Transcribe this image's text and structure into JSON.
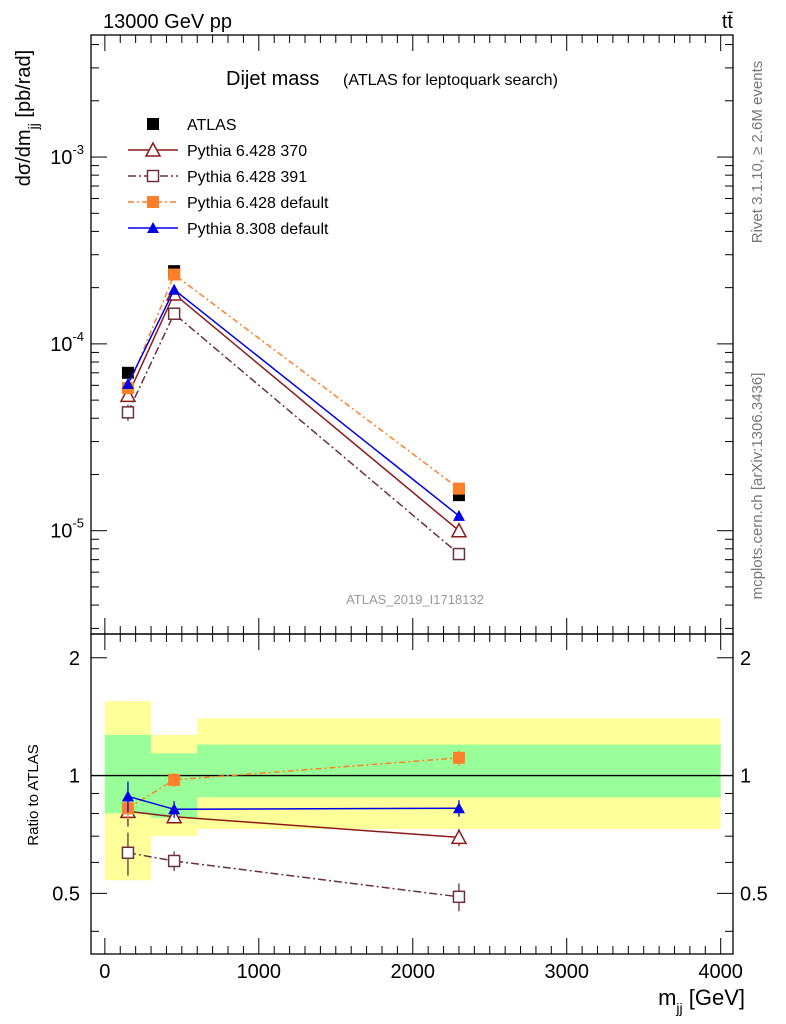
{
  "header": {
    "energy_label": "13000 GeV pp",
    "process_label": "tt̄"
  },
  "side": {
    "rivet_label": "Rivet 3.1.10, ≥ 2.6M events",
    "site_label": "mcplots.cern.ch [arXiv:1306.3436]"
  },
  "chart_data": [
    {
      "type": "line",
      "title": "Dijet mass",
      "subtitle": "(ATLAS for leptoquark search)",
      "analysis_id": "ATLAS_2019_I1718132",
      "ylabel": "dσ/dm_jj [pb/rad]",
      "yscale": "log",
      "ylim": [
        2.8e-06,
        0.0045
      ],
      "yticks": [
        "10^-5",
        "10^-4",
        "10^-3"
      ],
      "x": [
        150,
        450,
        2300
      ],
      "legend_position": "top-left",
      "series": [
        {
          "name": "ATLAS",
          "values": [
            7e-05,
            0.000245,
            1.55e-05
          ],
          "color": "#000000",
          "marker": "filled-square"
        },
        {
          "name": "Pythia 6.428 370",
          "values": [
            5.3e-05,
            0.000185,
            1e-05
          ],
          "color": "#8b1a1a",
          "marker": "open-triangle",
          "errors": [
            0.05,
            0.03,
            0.05
          ]
        },
        {
          "name": "Pythia 6.428 391",
          "values": [
            4.3e-05,
            0.000145,
            7.5e-06
          ],
          "color": "#6b3040",
          "marker": "open-square",
          "errors": [
            0.1,
            0.03,
            0.05
          ]
        },
        {
          "name": "Pythia 6.428 default",
          "values": [
            5.8e-05,
            0.000235,
            1.68e-05
          ],
          "color": "#ff7f2a",
          "marker": "filled-square",
          "errors": [
            0.05,
            0.03,
            0.04
          ]
        },
        {
          "name": "Pythia 8.308 default",
          "values": [
            6.1e-05,
            0.000195,
            1.2e-05
          ],
          "color": "#0000e6",
          "marker": "filled-triangle",
          "errors": [
            0.05,
            0.03,
            0.05
          ]
        }
      ]
    },
    {
      "type": "line",
      "ylabel": "Ratio to ATLAS",
      "xlabel": "m_jj [GeV]",
      "xlim": [
        -90,
        4080
      ],
      "ylim": [
        0.35,
        2.3
      ],
      "xticks": [
        "0",
        "1000",
        "2000",
        "3000",
        "4000"
      ],
      "yticks": [
        "0.5",
        "1",
        "2"
      ],
      "x": [
        150,
        450,
        2300
      ],
      "bands": [
        {
          "x": [
            0,
            300
          ],
          "yellow": [
            0.54,
            1.55
          ],
          "green": [
            0.8,
            1.27
          ]
        },
        {
          "x": [
            300,
            600
          ],
          "yellow": [
            0.7,
            1.27
          ],
          "green": [
            0.78,
            1.14
          ]
        },
        {
          "x": [
            600,
            4000
          ],
          "yellow": [
            0.73,
            1.4
          ],
          "green": [
            0.88,
            1.2
          ]
        }
      ],
      "series": [
        {
          "name": "Pythia 6.428 370",
          "values": [
            0.81,
            0.785,
            0.695
          ],
          "errors": [
            0.07,
            0.03,
            0.035
          ],
          "color": "#8b1a1a",
          "marker": "open-triangle"
        },
        {
          "name": "Pythia 6.428 391",
          "values": [
            0.635,
            0.605,
            0.49
          ],
          "errors": [
            0.08,
            0.035,
            0.04
          ],
          "color": "#6b3040",
          "marker": "open-square"
        },
        {
          "name": "Pythia 6.428 default",
          "values": [
            0.825,
            0.975,
            1.11
          ],
          "errors": [
            0.05,
            0.04,
            0.05
          ],
          "color": "#ff7f2a",
          "marker": "filled-square"
        },
        {
          "name": "Pythia 8.308 default",
          "values": [
            0.885,
            0.82,
            0.825
          ],
          "errors": [
            0.08,
            0.04,
            0.04
          ],
          "color": "#0000e6",
          "marker": "filled-triangle"
        }
      ]
    }
  ],
  "colors": {
    "band_yellow": "#ffff99",
    "band_green": "#99ff99",
    "analysis_label": "#999999",
    "side_label": "#777777"
  }
}
